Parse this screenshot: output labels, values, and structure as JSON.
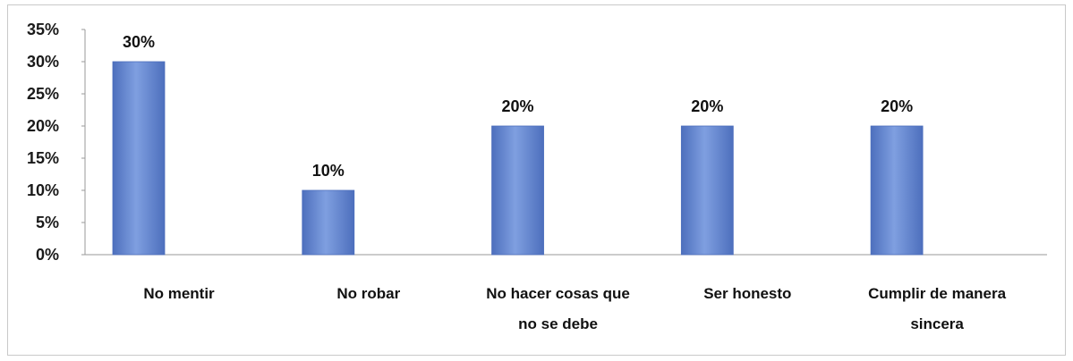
{
  "chart_data": {
    "type": "bar",
    "categories": [
      [
        "No mentir"
      ],
      [
        "No robar"
      ],
      [
        "No hacer cosas que",
        "no se debe"
      ],
      [
        "Ser honesto"
      ],
      [
        "Cumplir de manera",
        "sincera"
      ]
    ],
    "values": [
      30,
      10,
      20,
      20,
      20
    ],
    "data_labels": [
      "30%",
      "10%",
      "20%",
      "20%",
      "20%"
    ],
    "yticks": [
      "0%",
      "5%",
      "10%",
      "15%",
      "20%",
      "25%",
      "30%",
      "35%"
    ],
    "ylim": [
      0,
      35
    ],
    "grid": false,
    "bar_color": "#7f9fe0",
    "bar_color_dark": "#4d6fbd"
  }
}
